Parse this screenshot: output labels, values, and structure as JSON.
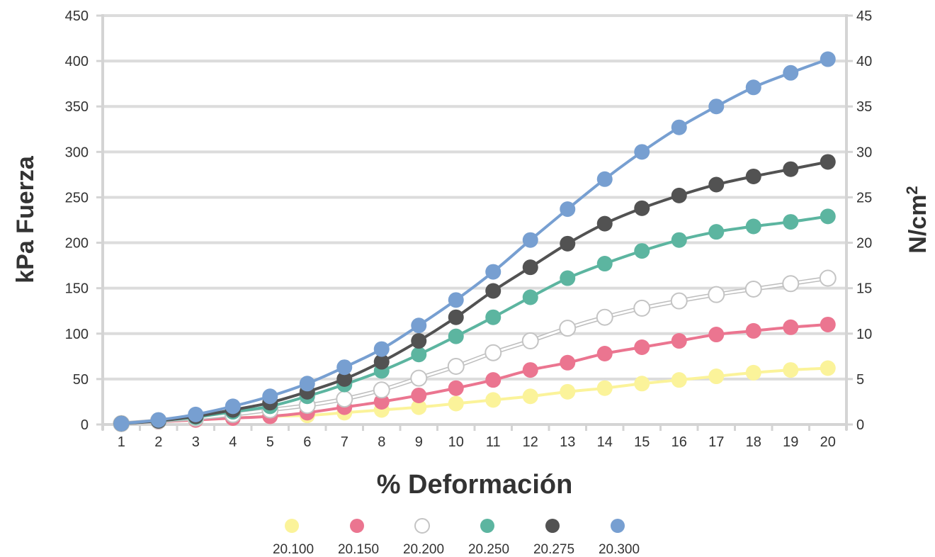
{
  "chart_data": {
    "type": "line",
    "xlabel": "% Deformación",
    "ylabel": "kPa Fuerza",
    "ylabel_right": "N/cm",
    "ylabel_right_sup": "2",
    "x": [
      1,
      2,
      3,
      4,
      5,
      6,
      7,
      8,
      9,
      10,
      11,
      12,
      13,
      14,
      15,
      16,
      17,
      18,
      19,
      20
    ],
    "ylim": [
      0,
      450
    ],
    "ylim_right": [
      0,
      45
    ],
    "yticks": [
      0,
      50,
      100,
      150,
      200,
      250,
      300,
      350,
      400,
      450
    ],
    "yticks_right": [
      0,
      5,
      10,
      15,
      20,
      25,
      30,
      35,
      40,
      45
    ],
    "grid": "horizontal",
    "legend_position": "bottom",
    "series": [
      {
        "name": "20.100",
        "color": "#fbf39a",
        "values": [
          1,
          3,
          5,
          7,
          9,
          10,
          13,
          16,
          19,
          23,
          27,
          31,
          36,
          40,
          45,
          49,
          53,
          57,
          60,
          62
        ]
      },
      {
        "name": "20.150",
        "color": "#eb7590",
        "values": [
          1,
          3,
          5,
          7,
          9,
          13,
          19,
          25,
          32,
          40,
          49,
          60,
          68,
          78,
          85,
          92,
          99,
          103,
          107,
          110
        ]
      },
      {
        "name": "20.200",
        "color": "#ffffff",
        "values": [
          1,
          4,
          7,
          11,
          16,
          21,
          28,
          38,
          51,
          64,
          79,
          92,
          106,
          118,
          128,
          136,
          143,
          149,
          155,
          161
        ]
      },
      {
        "name": "20.250",
        "color": "#5cb5a0",
        "values": [
          1,
          4,
          8,
          14,
          20,
          31,
          44,
          59,
          77,
          97,
          118,
          140,
          161,
          177,
          191,
          203,
          212,
          218,
          223,
          229
        ]
      },
      {
        "name": "20.275",
        "color": "#525252",
        "values": [
          1,
          4,
          9,
          16,
          24,
          36,
          50,
          69,
          92,
          118,
          147,
          173,
          199,
          221,
          238,
          252,
          264,
          273,
          281,
          289
        ]
      },
      {
        "name": "20.300",
        "color": "#779fd1",
        "values": [
          1,
          5,
          11,
          20,
          31,
          45,
          63,
          83,
          109,
          137,
          168,
          203,
          237,
          270,
          300,
          327,
          350,
          371,
          387,
          402
        ]
      }
    ]
  }
}
